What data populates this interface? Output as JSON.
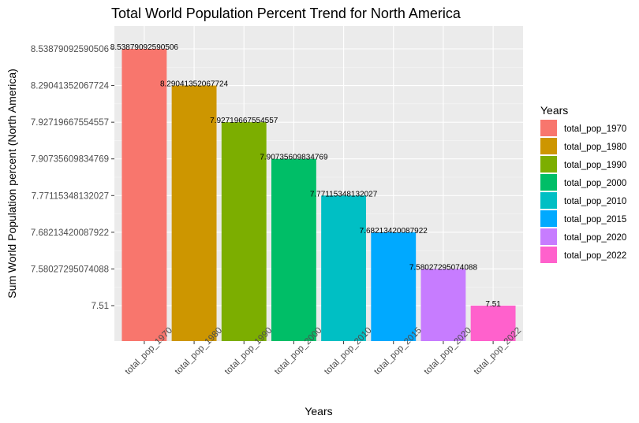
{
  "chart_data": {
    "type": "bar",
    "title": "Total World Population Percent Trend for North America",
    "xlabel": "Years",
    "ylabel": "Sum World Population percent (North America)",
    "categories": [
      "total_pop_1970",
      "total_pop_1980",
      "total_pop_1990",
      "total_pop_2000",
      "total_pop_2010",
      "total_pop_2015",
      "total_pop_2020",
      "total_pop_2022"
    ],
    "values": [
      8.53879092590506,
      8.29041352067724,
      7.92719667554557,
      7.90735609834769,
      7.77115348132027,
      7.68213420087922,
      7.58027295074088,
      7.51
    ],
    "labels": [
      "8.53879092590506",
      "8.29041352067724",
      "7.92719667554557",
      "7.90735609834769",
      "7.77115348132027",
      "7.68213420087922",
      "7.58027295074088",
      "7.51"
    ],
    "y_scale": "discrete (ordinal levels, ascending)",
    "y_ticks": [
      "7.51",
      "7.58027295074088",
      "7.68213420087922",
      "7.77115348132027",
      "7.90735609834769",
      "7.92719667554557",
      "8.29041352067724",
      "8.53879092590506"
    ],
    "colors": [
      "#F8766D",
      "#CD9600",
      "#7CAE00",
      "#00BE67",
      "#00BFC4",
      "#00A9FF",
      "#C77CFF",
      "#FF61CC"
    ],
    "panel_background": "#EBEBEB",
    "grid": true,
    "legend": {
      "title": "Years",
      "placement": "right",
      "entries": [
        "total_pop_1970",
        "total_pop_1980",
        "total_pop_1990",
        "total_pop_2000",
        "total_pop_2010",
        "total_pop_2015",
        "total_pop_2020",
        "total_pop_2022"
      ]
    }
  }
}
